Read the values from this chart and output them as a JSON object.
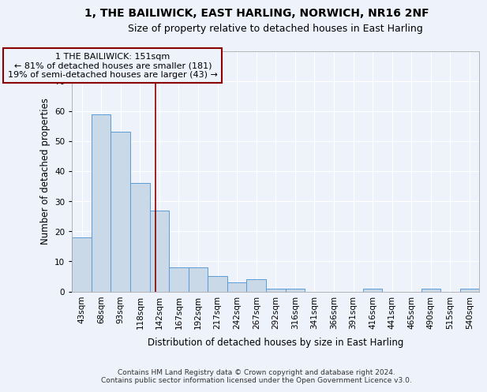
{
  "title": "1, THE BAILIWICK, EAST HARLING, NORWICH, NR16 2NF",
  "subtitle": "Size of property relative to detached houses in East Harling",
  "xlabel": "Distribution of detached houses by size in East Harling",
  "ylabel": "Number of detached properties",
  "categories": [
    "43sqm",
    "68sqm",
    "93sqm",
    "118sqm",
    "142sqm",
    "167sqm",
    "192sqm",
    "217sqm",
    "242sqm",
    "267sqm",
    "292sqm",
    "316sqm",
    "341sqm",
    "366sqm",
    "391sqm",
    "416sqm",
    "441sqm",
    "465sqm",
    "490sqm",
    "515sqm",
    "540sqm"
  ],
  "values": [
    18,
    59,
    53,
    36,
    27,
    8,
    8,
    5,
    3,
    4,
    1,
    1,
    0,
    0,
    0,
    1,
    0,
    0,
    1,
    0,
    1
  ],
  "bar_color": "#c9d9e8",
  "bar_edge_color": "#5b9bd5",
  "bar_width": 1.0,
  "ylim": [
    0,
    80
  ],
  "yticks": [
    0,
    10,
    20,
    30,
    40,
    50,
    60,
    70,
    80
  ],
  "vline_x": 4.32,
  "vline_color": "#8b0000",
  "annotation_text": "1 THE BAILIWICK: 151sqm\n← 81% of detached houses are smaller (181)\n19% of semi-detached houses are larger (43) →",
  "annotation_box_color": "#8b0000",
  "footer_line1": "Contains HM Land Registry data © Crown copyright and database right 2024.",
  "footer_line2": "Contains public sector information licensed under the Open Government Licence v3.0.",
  "background_color": "#eef2fb",
  "grid_color": "#ffffff",
  "title_fontsize": 10,
  "subtitle_fontsize": 9,
  "axis_label_fontsize": 8.5,
  "tick_fontsize": 7.5,
  "annotation_fontsize": 8,
  "footer_fontsize": 6.5
}
